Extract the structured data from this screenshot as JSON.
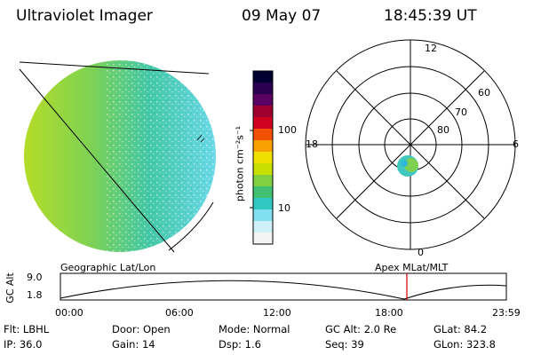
{
  "header": {
    "instrument": "Ultraviolet Imager",
    "date": "09 May 07",
    "time": "18:45:39 UT"
  },
  "colorbar": {
    "unit_label": "photon cm⁻²s⁻¹",
    "ticks": [
      "100",
      "10"
    ],
    "colors": [
      "#000033",
      "#2a0050",
      "#5a0060",
      "#a00030",
      "#d00020",
      "#f05000",
      "#f8a000",
      "#f0e000",
      "#c8e000",
      "#80d040",
      "#40c070",
      "#30c8c0",
      "#80e0f0",
      "#d0f0f8",
      "#f4f4f4"
    ]
  },
  "polar": {
    "mlt_labels": {
      "top": "12",
      "bottom": "0",
      "left": "18",
      "right": "6"
    },
    "lat_labels": [
      "60",
      "70",
      "80"
    ]
  },
  "orbit": {
    "left_label": "Geographic Lat/Lon",
    "right_label": "Apex MLat/MLT",
    "ylabel": "GC Alt",
    "yticks": [
      "9.0",
      "1.8"
    ],
    "xticks": [
      "00:00",
      "06:00",
      "12:00",
      "18:00",
      "23:59"
    ],
    "marker_color": "#cc0000"
  },
  "info": {
    "row1": [
      {
        "label": "Flt: LBHL"
      },
      {
        "label": "Door: Open"
      },
      {
        "label": "Mode: Normal"
      },
      {
        "label": "GC Alt: 2.0 Re"
      },
      {
        "label": "GLat:  84.2"
      }
    ],
    "row2": [
      {
        "label": "IP: 36.0"
      },
      {
        "label": "Gain: 14"
      },
      {
        "label": "Dsp:    1.6"
      },
      {
        "label": "Seq: 39"
      },
      {
        "label": "GLon: 323.8"
      }
    ]
  }
}
